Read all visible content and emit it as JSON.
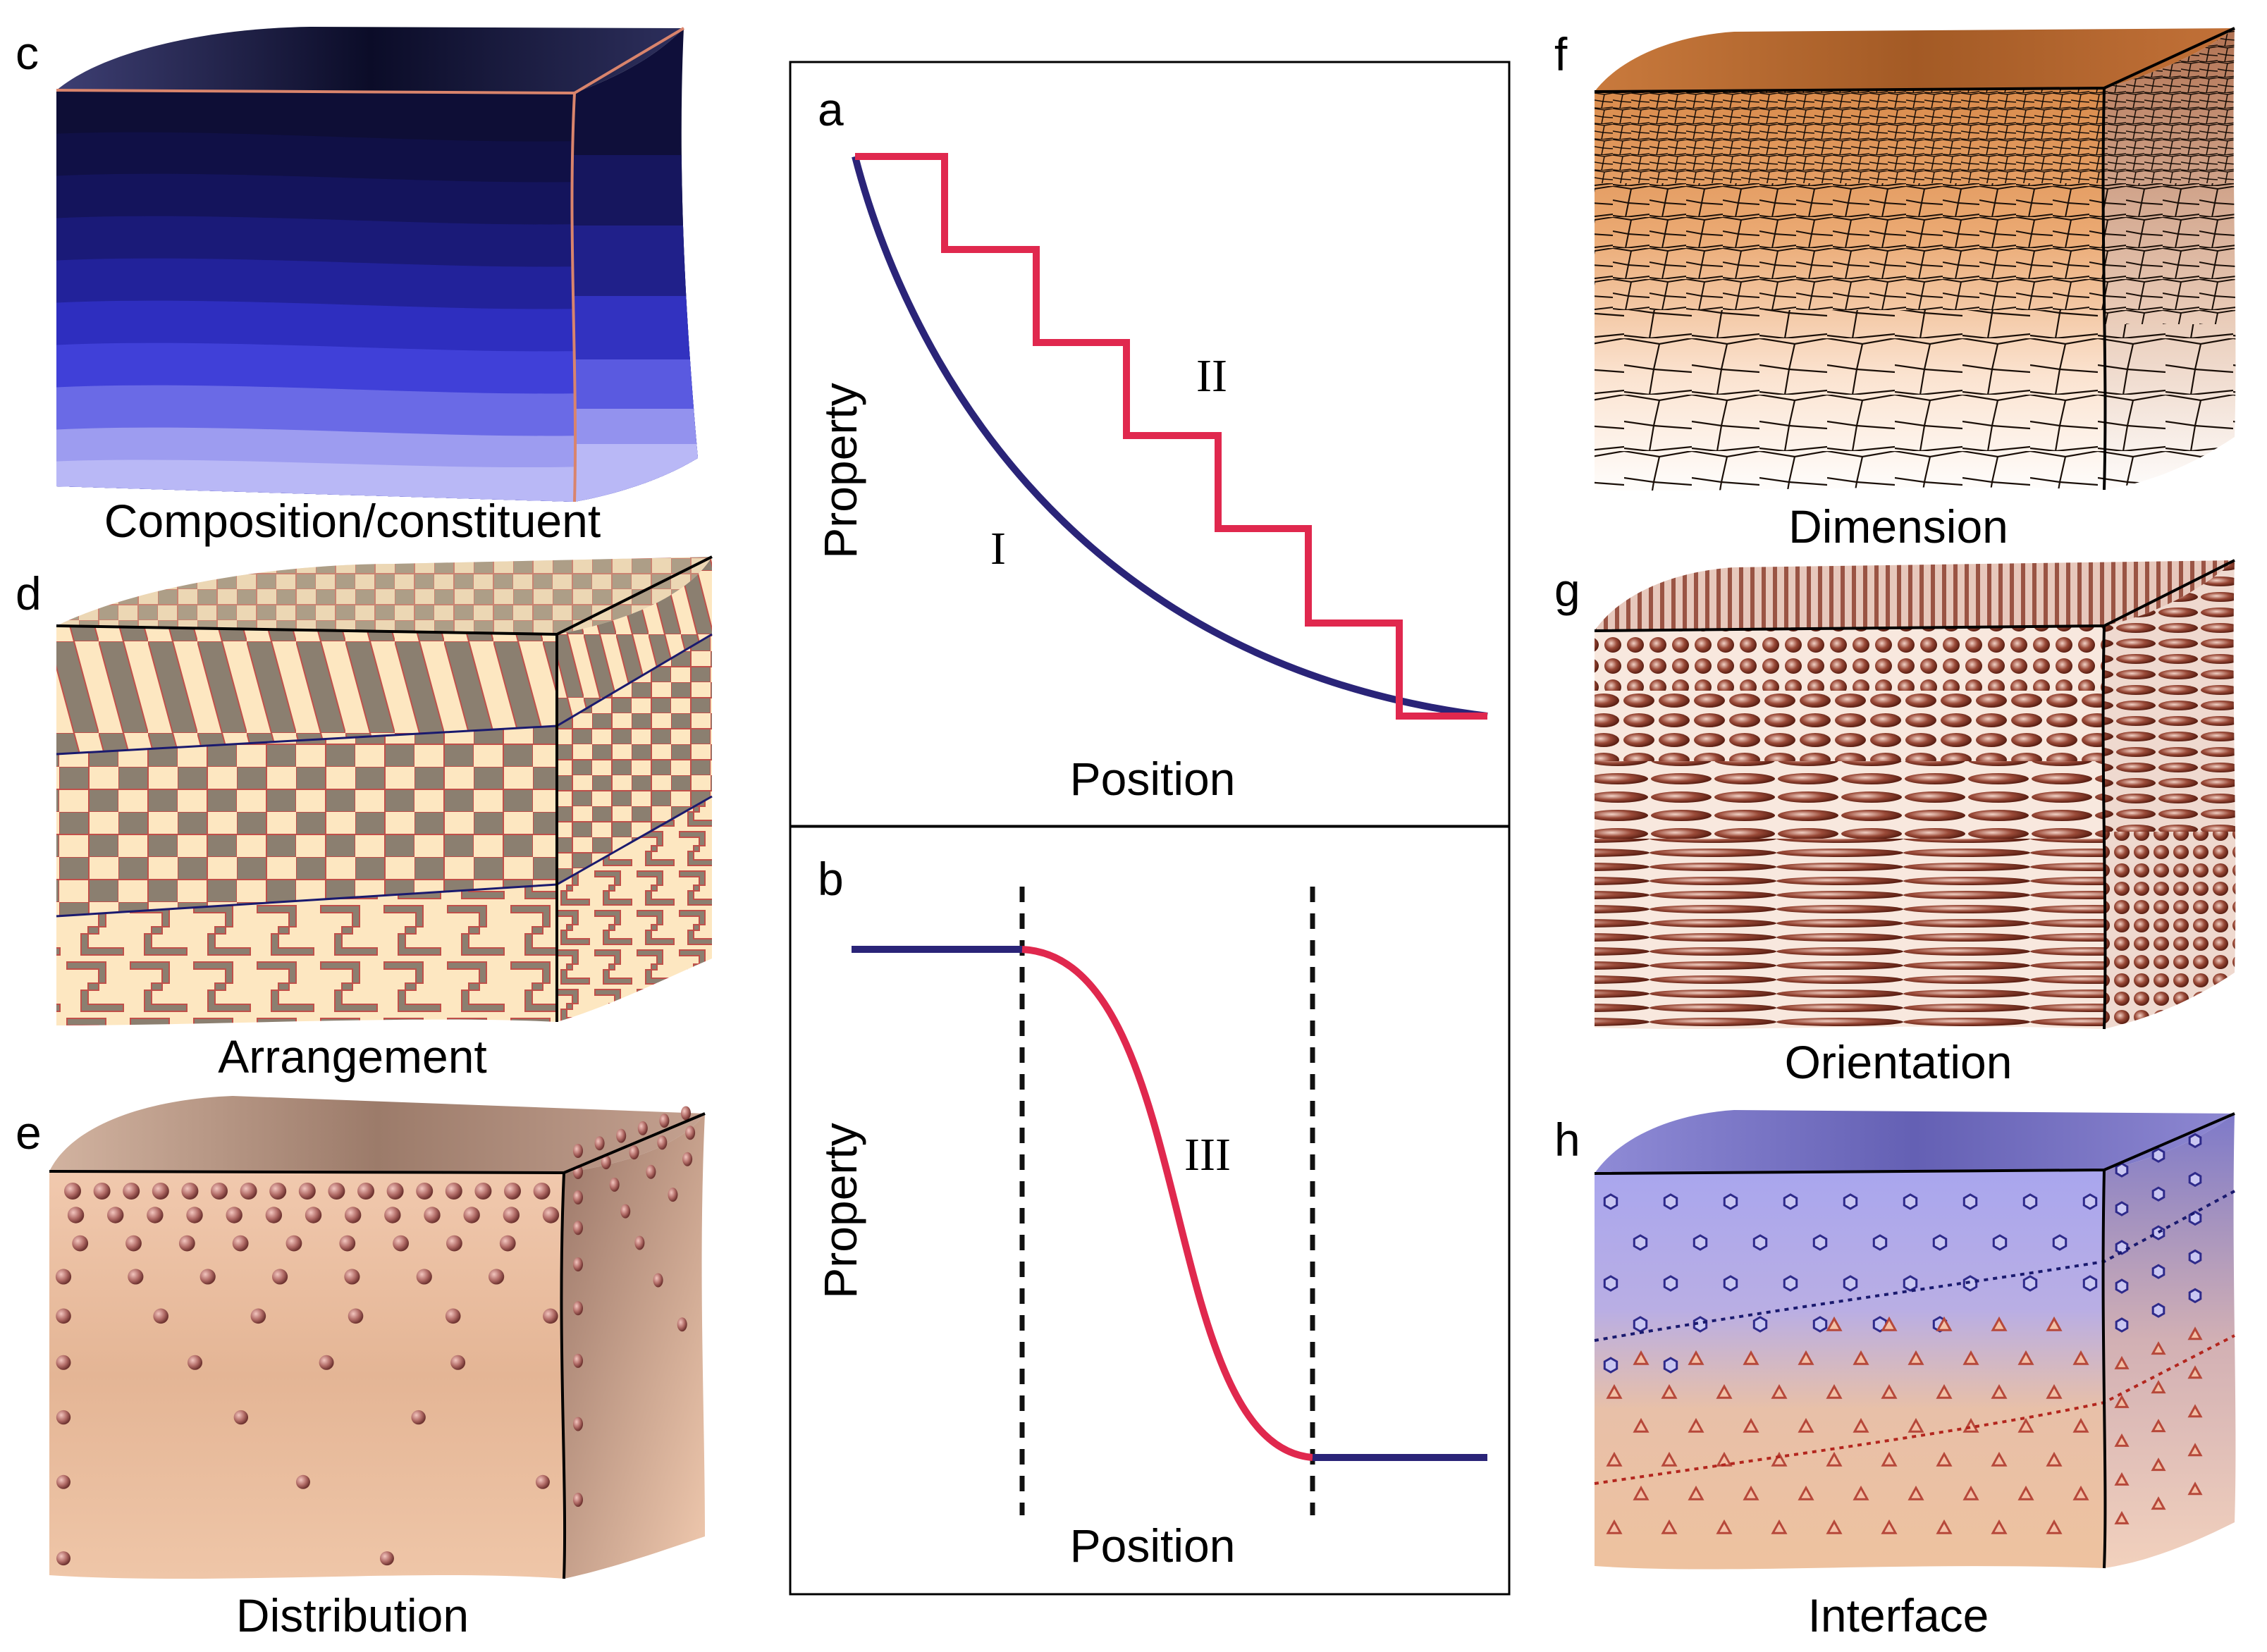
{
  "panels": {
    "a": {
      "letter": "a",
      "y_label": "Property",
      "x_label": "Position",
      "curve_label_1": "I",
      "curve_label_2": "II",
      "colors": {
        "curve_I": "#2a2478",
        "curve_II": "#e0284e"
      }
    },
    "b": {
      "letter": "b",
      "y_label": "Property",
      "x_label": "Position",
      "curve_label": "III",
      "colors": {
        "flat": "#2a2478",
        "transition": "#e0284e",
        "boundary": "#111111"
      }
    },
    "c": {
      "letter": "c",
      "caption": "Composition/constituent"
    },
    "d": {
      "letter": "d",
      "caption": "Arrangement"
    },
    "e": {
      "letter": "e",
      "caption": "Distribution"
    },
    "f": {
      "letter": "f",
      "caption": "Dimension"
    },
    "g": {
      "letter": "g",
      "caption": "Orientation"
    },
    "h": {
      "letter": "h",
      "caption": "Interface"
    }
  }
}
